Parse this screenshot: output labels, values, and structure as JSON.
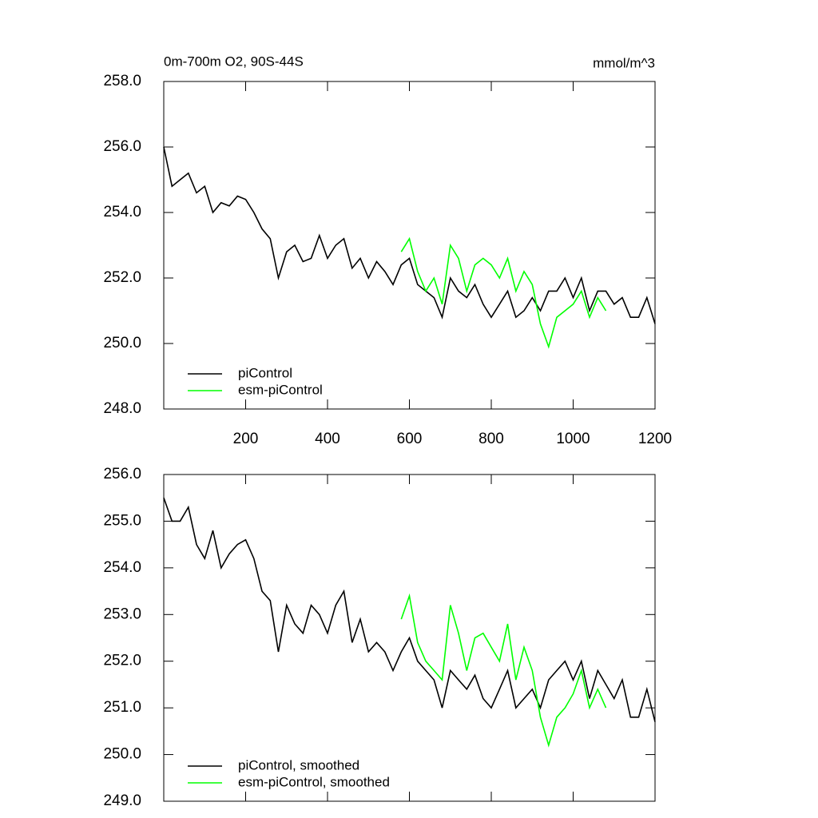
{
  "chart_data": [
    {
      "type": "line",
      "title": "0m-700m O2, 90S-44S",
      "units": "mmol/m^3",
      "xlim": [
        0,
        1200
      ],
      "xticks": [
        200,
        400,
        600,
        800,
        1000,
        1200
      ],
      "ylim": [
        248,
        258
      ],
      "yticks": [
        {
          "value": 248,
          "label": "248.0"
        },
        {
          "value": 250,
          "label": "250.0"
        },
        {
          "value": 252,
          "label": "252.0"
        },
        {
          "value": 254,
          "label": "254.0"
        },
        {
          "value": 256,
          "label": "256.0"
        },
        {
          "value": 258,
          "label": "258.0"
        }
      ],
      "legend": "lower left",
      "series": [
        {
          "name": "piControl",
          "color": "#000000",
          "x": [
            0,
            20,
            40,
            60,
            80,
            100,
            120,
            140,
            160,
            180,
            200,
            220,
            240,
            260,
            280,
            300,
            320,
            340,
            360,
            380,
            400,
            420,
            440,
            460,
            480,
            500,
            520,
            540,
            560,
            580,
            600,
            620,
            640,
            660,
            680,
            700,
            720,
            740,
            760,
            780,
            800,
            820,
            840,
            860,
            880,
            900,
            920,
            940,
            960,
            980,
            1000,
            1020,
            1040,
            1060,
            1080,
            1100,
            1120,
            1140,
            1160,
            1180,
            1200
          ],
          "values": [
            256.0,
            254.8,
            255.0,
            255.2,
            254.6,
            254.8,
            254.0,
            254.3,
            254.2,
            254.5,
            254.4,
            254.0,
            253.5,
            253.2,
            252.0,
            252.8,
            253.0,
            252.5,
            252.6,
            253.3,
            252.6,
            253.0,
            253.2,
            252.3,
            252.6,
            252.0,
            252.5,
            252.2,
            251.8,
            252.4,
            252.6,
            251.8,
            251.6,
            251.4,
            250.8,
            252.0,
            251.6,
            251.4,
            251.8,
            251.2,
            250.8,
            251.2,
            251.6,
            250.8,
            251.0,
            251.4,
            251.0,
            251.6,
            251.6,
            252.0,
            251.4,
            252.0,
            251.0,
            251.6,
            251.6,
            251.2,
            251.4,
            250.8,
            250.8,
            251.4,
            250.6
          ]
        },
        {
          "name": "esm-piControl",
          "color": "#00ff00",
          "x": [
            580,
            600,
            620,
            640,
            660,
            680,
            700,
            720,
            740,
            760,
            780,
            800,
            820,
            840,
            860,
            880,
            900,
            920,
            940,
            960,
            980,
            1000,
            1020,
            1040,
            1060,
            1080
          ],
          "values": [
            252.8,
            253.2,
            252.2,
            251.6,
            252.0,
            251.2,
            253.0,
            252.6,
            251.6,
            252.4,
            252.6,
            252.4,
            252.0,
            252.6,
            251.6,
            252.2,
            251.8,
            250.6,
            249.9,
            250.8,
            251.0,
            251.2,
            251.6,
            250.8,
            251.4,
            251.0
          ]
        }
      ]
    },
    {
      "type": "line",
      "xlim": [
        0,
        1200
      ],
      "ylim": [
        249,
        256
      ],
      "yticks": [
        {
          "value": 249,
          "label": "249.0"
        },
        {
          "value": 250,
          "label": "250.0"
        },
        {
          "value": 251,
          "label": "251.0"
        },
        {
          "value": 252,
          "label": "252.0"
        },
        {
          "value": 253,
          "label": "253.0"
        },
        {
          "value": 254,
          "label": "254.0"
        },
        {
          "value": 255,
          "label": "255.0"
        },
        {
          "value": 256,
          "label": "256.0"
        }
      ],
      "legend": "lower left",
      "series": [
        {
          "name": "piControl, smoothed",
          "color": "#000000",
          "x": [
            0,
            20,
            40,
            60,
            80,
            100,
            120,
            140,
            160,
            180,
            200,
            220,
            240,
            260,
            280,
            300,
            320,
            340,
            360,
            380,
            400,
            420,
            440,
            460,
            480,
            500,
            520,
            540,
            560,
            580,
            600,
            620,
            640,
            660,
            680,
            700,
            720,
            740,
            760,
            780,
            800,
            820,
            840,
            860,
            880,
            900,
            920,
            940,
            960,
            980,
            1000,
            1020,
            1040,
            1060,
            1080,
            1100,
            1120,
            1140,
            1160,
            1180,
            1200
          ],
          "values": [
            255.5,
            255.0,
            255.0,
            255.3,
            254.5,
            254.2,
            254.8,
            254.0,
            254.3,
            254.5,
            254.6,
            254.2,
            253.5,
            253.3,
            252.2,
            253.2,
            252.8,
            252.6,
            253.2,
            253.0,
            252.6,
            253.2,
            253.5,
            252.4,
            252.9,
            252.2,
            252.4,
            252.2,
            251.8,
            252.2,
            252.5,
            252.0,
            251.8,
            251.6,
            251.0,
            251.8,
            251.6,
            251.4,
            251.7,
            251.2,
            251.0,
            251.4,
            251.8,
            251.0,
            251.2,
            251.4,
            251.0,
            251.6,
            251.8,
            252.0,
            251.6,
            252.0,
            251.2,
            251.8,
            251.5,
            251.2,
            251.6,
            250.8,
            250.8,
            251.4,
            250.7
          ]
        },
        {
          "name": "esm-piControl, smoothed",
          "color": "#00ff00",
          "x": [
            580,
            600,
            620,
            640,
            660,
            680,
            700,
            720,
            740,
            760,
            780,
            800,
            820,
            840,
            860,
            880,
            900,
            920,
            940,
            960,
            980,
            1000,
            1020,
            1040,
            1060,
            1080
          ],
          "values": [
            252.9,
            253.4,
            252.4,
            252.0,
            251.8,
            251.6,
            253.2,
            252.6,
            251.8,
            252.5,
            252.6,
            252.3,
            252.0,
            252.8,
            251.6,
            252.3,
            251.8,
            250.8,
            250.2,
            250.8,
            251.0,
            251.3,
            251.8,
            251.0,
            251.4,
            251.0
          ]
        }
      ]
    }
  ]
}
